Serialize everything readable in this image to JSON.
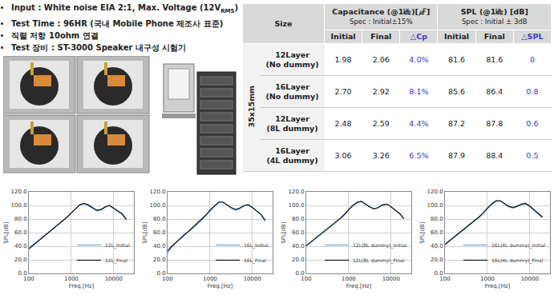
{
  "bullets": [
    [
      {
        "t": "Input : White noise EIA 2:1, Max. Voltage (12V"
      },
      {
        "sub": "RMS"
      },
      {
        "t": ")"
      }
    ],
    [
      {
        "t": "Test Time : 96HR (국내 Mobile Phone 제조사 표준)"
      }
    ],
    [
      {
        "t": "직렬 저항 10ohm 연결"
      }
    ],
    [
      {
        "t": "Test 장비 : ST-3000 Speaker 내구성 시험기"
      }
    ]
  ],
  "table": {
    "header": {
      "size": "Size",
      "groups": [
        {
          "title": "Capacitance (@1㎑)[㎌]",
          "spec": "Spec : Initial±15%",
          "columns": [
            "Initial",
            "Final",
            "△Cp"
          ]
        },
        {
          "title": "SPL (@1㎑) [dB]",
          "spec": "Spec : Initial ± 3dB",
          "columns": [
            "Initial",
            "Final",
            "△SPL"
          ]
        }
      ]
    },
    "group_label": "35x15mm",
    "rows": [
      {
        "size": [
          "12Layer",
          "(No dummy)"
        ],
        "cells": [
          "1.98",
          "2.06",
          "4.0%",
          "81.6",
          "81.6",
          "0"
        ]
      },
      {
        "size": [
          "16Layer",
          "(No dummy)"
        ],
        "cells": [
          "2.70",
          "2.92",
          "8.1%",
          "85.6",
          "86.4",
          "0.8"
        ]
      },
      {
        "size": [
          "12Layer",
          "(8L dummy)"
        ],
        "cells": [
          "2.48",
          "2.59",
          "4.4%",
          "87.2",
          "87.8",
          "0.6"
        ]
      },
      {
        "size": [
          "16Layer",
          "(4L dummy)"
        ],
        "cells": [
          "3.06",
          "3.26",
          "6.5%",
          "87.9",
          "88.4",
          "0.5"
        ]
      }
    ]
  },
  "chart_data": [
    {
      "type": "line",
      "log": "x",
      "grid": true,
      "legend": "lower right",
      "x_label": "Freq.[Hz]",
      "y_label": "SPL[dB]",
      "x": [
        100,
        125,
        160,
        200,
        250,
        315,
        400,
        500,
        630,
        800,
        1000,
        1250,
        1600,
        2000,
        2500,
        3150,
        4000,
        5000,
        6300,
        8000,
        10000,
        12500,
        16000,
        20000
      ],
      "xlim": [
        100,
        30000
      ],
      "xticks": [
        100,
        1000,
        10000
      ],
      "ylim": [
        0,
        120
      ],
      "yticks": [
        {
          "value": 0,
          "label": "0.0"
        },
        {
          "value": 20,
          "label": "20.0"
        },
        {
          "value": 40,
          "label": "40.0"
        },
        {
          "value": 60,
          "label": "60.0"
        },
        {
          "value": 80,
          "label": "80.0"
        },
        {
          "value": 100,
          "label": "100.0"
        },
        {
          "value": 120,
          "label": "120.0"
        }
      ],
      "series": [
        {
          "name": "12L_Initial",
          "color": "#6fa8dc",
          "values": [
            38,
            42,
            47,
            52,
            57,
            62,
            67,
            72,
            77,
            83,
            89,
            95,
            101,
            103,
            100,
            96,
            92,
            93,
            97,
            100,
            96,
            92,
            88,
            80
          ]
        },
        {
          "name": "12L_Final",
          "color": "#111111",
          "values": [
            36,
            41,
            46,
            52,
            57,
            62,
            67,
            72,
            77,
            83,
            89,
            95,
            101,
            103,
            101,
            97,
            93,
            94,
            98,
            100,
            96,
            92,
            87,
            79
          ]
        }
      ]
    },
    {
      "type": "line",
      "log": "x",
      "grid": true,
      "legend": "lower right",
      "x_label": "Freq.[Hz]",
      "y_label": "SPL[dB]",
      "x": [
        100,
        125,
        160,
        200,
        250,
        315,
        400,
        500,
        630,
        800,
        1000,
        1250,
        1600,
        2000,
        2500,
        3150,
        4000,
        5000,
        6300,
        8000,
        10000,
        12500,
        16000,
        20000
      ],
      "xlim": [
        100,
        30000
      ],
      "xticks": [
        100,
        1000,
        10000
      ],
      "ylim": [
        0,
        120
      ],
      "yticks": [
        {
          "value": 0,
          "label": "0.0"
        },
        {
          "value": 20,
          "label": "20.0"
        },
        {
          "value": 40,
          "label": "40.0"
        },
        {
          "value": 60,
          "label": "60.0"
        },
        {
          "value": 80,
          "label": "80.0"
        },
        {
          "value": 100,
          "label": "100.0"
        },
        {
          "value": 120,
          "label": "120.0"
        }
      ],
      "series": [
        {
          "name": "16L_Initial",
          "color": "#6fa8dc",
          "values": [
            30,
            38,
            45,
            51,
            56,
            62,
            67,
            72,
            78,
            85,
            92,
            98,
            104,
            105,
            101,
            96,
            93,
            95,
            99,
            101,
            97,
            92,
            86,
            77
          ]
        },
        {
          "name": "16L_Final",
          "color": "#111111",
          "values": [
            33,
            40,
            46,
            52,
            57,
            62,
            68,
            73,
            79,
            86,
            93,
            99,
            105,
            105,
            101,
            97,
            94,
            96,
            100,
            101,
            97,
            92,
            87,
            78
          ]
        }
      ]
    },
    {
      "type": "line",
      "log": "x",
      "grid": true,
      "legend": "lower right",
      "x_label": "Freq.[Hz]",
      "y_label": "SPL[dB]",
      "x": [
        100,
        125,
        160,
        200,
        250,
        315,
        400,
        500,
        630,
        800,
        1000,
        1250,
        1600,
        2000,
        2500,
        3150,
        4000,
        5000,
        6300,
        8000,
        10000,
        12500,
        16000,
        20000
      ],
      "xlim": [
        100,
        30000
      ],
      "xticks": [
        100,
        1000,
        10000
      ],
      "ylim": [
        0,
        120
      ],
      "yticks": [
        {
          "value": 0,
          "label": "0.0"
        },
        {
          "value": 20,
          "label": "20.0"
        },
        {
          "value": 40,
          "label": "40.0"
        },
        {
          "value": 60,
          "label": "60.0"
        },
        {
          "value": 80,
          "label": "80.0"
        },
        {
          "value": 100,
          "label": "100.0"
        },
        {
          "value": 120,
          "label": "120.0"
        }
      ],
      "series": [
        {
          "name": "12L(8L dummy)_Initial",
          "color": "#6fa8dc",
          "values": [
            40,
            45,
            50,
            55,
            60,
            65,
            70,
            75,
            80,
            86,
            93,
            99,
            104,
            106,
            102,
            97,
            95,
            97,
            100,
            102,
            98,
            93,
            88,
            80
          ]
        },
        {
          "name": "12L(8L dummy)_Final",
          "color": "#111111",
          "values": [
            41,
            46,
            51,
            56,
            61,
            66,
            71,
            76,
            81,
            87,
            94,
            100,
            105,
            106,
            102,
            98,
            95,
            97,
            101,
            102,
            98,
            93,
            88,
            81
          ]
        }
      ]
    },
    {
      "type": "line",
      "log": "x",
      "grid": true,
      "legend": "lower right",
      "x_label": "Freq.[Hz]",
      "y_label": "SPL[dB]",
      "x": [
        100,
        125,
        160,
        200,
        250,
        315,
        400,
        500,
        630,
        800,
        1000,
        1250,
        1600,
        2000,
        2500,
        3150,
        4000,
        5000,
        6300,
        8000,
        10000,
        12500,
        16000,
        20000
      ],
      "xlim": [
        100,
        30000
      ],
      "xticks": [
        100,
        1000,
        10000
      ],
      "ylim": [
        0,
        120
      ],
      "yticks": [
        {
          "value": 0,
          "label": "0.0"
        },
        {
          "value": 20,
          "label": "20.0"
        },
        {
          "value": 40,
          "label": "40.0"
        },
        {
          "value": 60,
          "label": "60.0"
        },
        {
          "value": 80,
          "label": "80.0"
        },
        {
          "value": 100,
          "label": "100.0"
        },
        {
          "value": 120,
          "label": "120.0"
        }
      ],
      "series": [
        {
          "name": "16L(4L dummy)_Initial",
          "color": "#6fa8dc",
          "values": [
            42,
            47,
            52,
            57,
            62,
            67,
            72,
            77,
            82,
            88,
            95,
            101,
            106,
            107,
            103,
            98,
            96,
            98,
            101,
            102,
            98,
            93,
            88,
            82
          ]
        },
        {
          "name": "16L(4L dummy)_Final",
          "color": "#111111",
          "values": [
            43,
            48,
            53,
            58,
            63,
            68,
            73,
            78,
            83,
            89,
            96,
            102,
            107,
            107,
            103,
            99,
            97,
            99,
            102,
            103,
            99,
            94,
            89,
            83
          ]
        }
      ]
    }
  ]
}
